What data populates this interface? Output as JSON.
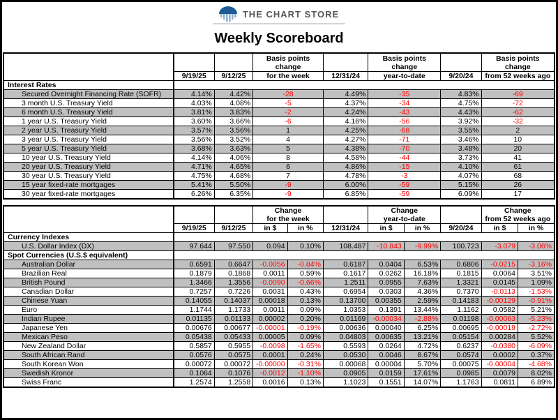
{
  "brand": {
    "name": "THE CHART STORE"
  },
  "title": "Weekly Scoreboard",
  "colors": {
    "negative": "#ff0000",
    "row_shade": "#c0c0c0",
    "logo_dome_blue": "#1e5b97",
    "logo_bar_blue": "#8fb2d0",
    "brand_text": "#54565b"
  },
  "rates_table": {
    "header": {
      "d1": "9/19/25",
      "d2": "9/12/25",
      "dec": "12/31/24",
      "d3": "9/20/24",
      "week": [
        "Basis points",
        "change",
        "for the week"
      ],
      "ytd": [
        "Basis points",
        "change",
        "year-to-date"
      ],
      "wk52": [
        "Basis points",
        "change",
        "from 52 weeks ago"
      ]
    },
    "sections": [
      {
        "title": "Interest Rates",
        "rows": [
          {
            "label": "Secured Overnight Financing Rate (SOFR)",
            "cells": [
              "4.14%",
              "4.42%",
              "-28",
              "4.49%",
              "-35",
              "4.83%",
              "-69"
            ]
          },
          {
            "label": "3 month U.S. Treasury Yield",
            "cells": [
              "4.03%",
              "4.08%",
              "-5",
              "4.37%",
              "-34",
              "4.75%",
              "-72"
            ]
          },
          {
            "label": "6 month U.S. Treasury Yield",
            "cells": [
              "3.81%",
              "3.83%",
              "-2",
              "4.24%",
              "-43",
              "4.43%",
              "-62"
            ]
          },
          {
            "label": "1 year U.S. Treasury Yield",
            "cells": [
              "3.60%",
              "3.66%",
              "-6",
              "4.16%",
              "-56",
              "3.92%",
              "-32"
            ]
          },
          {
            "label": "2 year U.S. Treasury Yield",
            "cells": [
              "3.57%",
              "3.56%",
              "1",
              "4.25%",
              "-68",
              "3.55%",
              "2"
            ]
          },
          {
            "label": "3 year U.S. Treasury Yield",
            "cells": [
              "3.56%",
              "3.52%",
              "4",
              "4.27%",
              "-71",
              "3.46%",
              "10"
            ]
          },
          {
            "label": "5 year U.S. Treasury Yield",
            "cells": [
              "3.68%",
              "3.63%",
              "5",
              "4.38%",
              "-70",
              "3.48%",
              "20"
            ]
          },
          {
            "label": "10 year U.S. Treasury Yield",
            "cells": [
              "4.14%",
              "4.06%",
              "8",
              "4.58%",
              "-44",
              "3.73%",
              "41"
            ]
          },
          {
            "label": "20 year U.S. Treasury Yield",
            "cells": [
              "4.71%",
              "4.65%",
              "6",
              "4.86%",
              "-15",
              "4.10%",
              "61"
            ]
          },
          {
            "label": "30 year U.S. Treasury Yield",
            "cells": [
              "4.75%",
              "4.68%",
              "7",
              "4.78%",
              "-3",
              "4.07%",
              "68"
            ]
          },
          {
            "label": "15 year fixed-rate mortgages",
            "cells": [
              "5.41%",
              "5.50%",
              "-9",
              "6.00%",
              "-59",
              "5.15%",
              "26"
            ]
          },
          {
            "label": "30 year fixed-rate mortgages",
            "cells": [
              "6.26%",
              "6.35%",
              "-9",
              "6.85%",
              "-59",
              "6.09%",
              "17"
            ]
          }
        ]
      }
    ]
  },
  "currency_table": {
    "header": {
      "d1": "9/19/25",
      "d2": "9/12/25",
      "dec": "12/31/24",
      "d3": "9/20/24",
      "week": [
        "Change",
        "for the week"
      ],
      "ytd": [
        "Change",
        "year-to-date"
      ],
      "wk52": [
        "Change",
        "from 52 weeks ago"
      ],
      "in_dollar": "in $",
      "in_pct": "in %"
    },
    "sections": [
      {
        "title": "Currency Indexes",
        "rows": [
          {
            "label": "U.S. Dollar Index (DX)",
            "cells": [
              "97.644",
              "97.550",
              "0.094",
              "0.10%",
              "108.487",
              "-10.843",
              "-9.99%",
              "100.723",
              "-3.079",
              "-3.06%"
            ]
          }
        ]
      },
      {
        "title": "Spot Currencies (U.S.$ equivalent)",
        "rows": [
          {
            "label": "Australian Dollar",
            "cells": [
              "0.6591",
              "0.6647",
              "-0.0056",
              "-0.84%",
              "0.6187",
              "0.0404",
              "6.53%",
              "0.6806",
              "-0.0215",
              "-3.16%"
            ]
          },
          {
            "label": "Brazilian Real",
            "cells": [
              "0.1879",
              "0.1868",
              "0.0011",
              "0.59%",
              "0.1617",
              "0.0262",
              "16.18%",
              "0.1815",
              "0.0064",
              "3.51%"
            ]
          },
          {
            "label": "British Pound",
            "cells": [
              "1.3466",
              "1.3556",
              "-0.0090",
              "-0.66%",
              "1.2511",
              "0.0955",
              "7.63%",
              "1.3321",
              "0.0145",
              "1.09%"
            ]
          },
          {
            "label": "Canadian Dollar",
            "cells": [
              "0.7257",
              "0.7226",
              "0.0031",
              "0.43%",
              "0.6954",
              "0.0303",
              "4.36%",
              "0.7370",
              "-0.0113",
              "-1.53%"
            ]
          },
          {
            "label": "Chinese Yuan",
            "cells": [
              "0.14055",
              "0.14037",
              "0.00018",
              "0.13%",
              "0.13700",
              "0.00355",
              "2.59%",
              "0.14183",
              "-0.00129",
              "-0.91%"
            ]
          },
          {
            "label": "Euro",
            "cells": [
              "1.1744",
              "1.1733",
              "0.0011",
              "0.09%",
              "1.0353",
              "0.1391",
              "13.44%",
              "1.1162",
              "0.0582",
              "5.21%"
            ]
          },
          {
            "label": "Indian Rupee",
            "cells": [
              "0.01135",
              "0.01133",
              "0.00002",
              "0.20%",
              "0.01169",
              "-0.00034",
              "-2.88%",
              "0.01198",
              "-0.00063",
              "-5.23%"
            ]
          },
          {
            "label": "Japanese Yen",
            "cells": [
              "0.00676",
              "0.00677",
              "-0.00001",
              "-0.19%",
              "0.00636",
              "0.00040",
              "6.25%",
              "0.00695",
              "-0.00019",
              "-2.72%"
            ]
          },
          {
            "label": "Mexican Peso",
            "cells": [
              "0.05438",
              "0.05433",
              "0.00005",
              "0.09%",
              "0.04803",
              "0.00635",
              "13.21%",
              "0.05154",
              "0.00284",
              "5.52%"
            ]
          },
          {
            "label": "New Zealand Dollar",
            "cells": [
              "0.5857",
              "0.5955",
              "-0.0098",
              "-1.65%",
              "0.5593",
              "0.0264",
              "4.72%",
              "0.6237",
              "-0.0380",
              "-6.09%"
            ]
          },
          {
            "label": "South African Rand",
            "cells": [
              "0.0576",
              "0.0575",
              "0.0001",
              "0.24%",
              "0.0530",
              "0.0046",
              "8.67%",
              "0.0574",
              "0.0002",
              "0.37%"
            ]
          },
          {
            "label": "South Korean Won",
            "cells": [
              "0.00072",
              "0.00072",
              "-0.00000",
              "-0.31%",
              "0.00068",
              "0.00004",
              "5.70%",
              "0.00075",
              "-0.00004",
              "-4.68%"
            ]
          },
          {
            "label": "Swedish Kronor",
            "cells": [
              "0.1064",
              "0.1076",
              "-0.0012",
              "-1.10%",
              "0.0905",
              "0.0159",
              "17.61%",
              "0.0985",
              "0.0079",
              "8.02%"
            ]
          },
          {
            "label": "Swiss Franc",
            "cells": [
              "1.2574",
              "1.2558",
              "0.0016",
              "0.13%",
              "1.1023",
              "0.1551",
              "14.07%",
              "1.1763",
              "0.0811",
              "6.89%"
            ]
          }
        ]
      }
    ]
  }
}
